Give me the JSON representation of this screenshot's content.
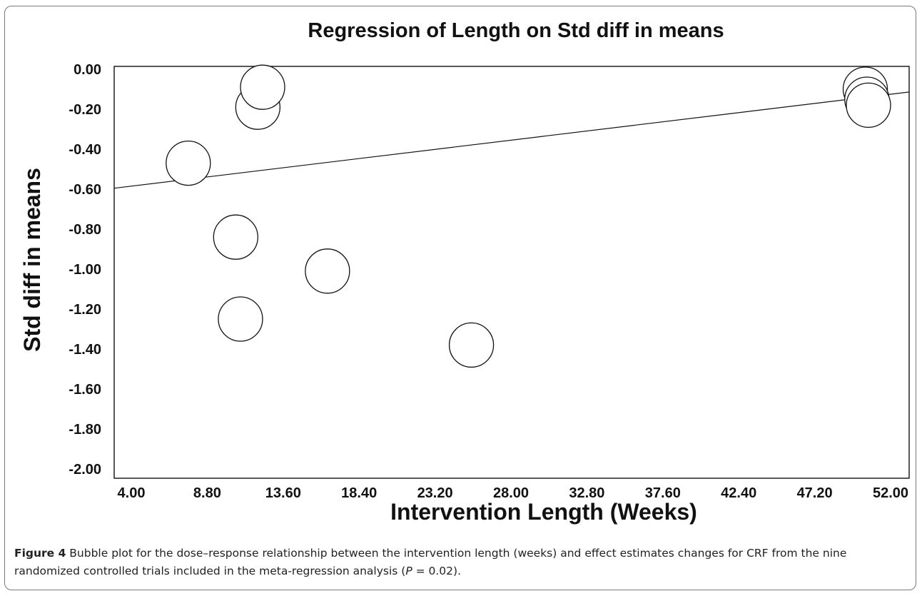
{
  "chart_data": {
    "type": "scatter",
    "title": "Regression of Length on Std diff in means",
    "xlabel": "Intervention Length (Weeks)",
    "ylabel": "Std diff in means",
    "xlim": [
      4.0,
      52.0
    ],
    "ylim": [
      -2.0,
      0.0
    ],
    "x_ticks": [
      "4.00",
      "8.80",
      "13.60",
      "18.40",
      "23.20",
      "28.00",
      "32.80",
      "37.60",
      "42.40",
      "47.20",
      "52.00"
    ],
    "y_ticks": [
      "0.00",
      "-0.20",
      "-0.40",
      "-0.60",
      "-0.80",
      "-1.00",
      "-1.20",
      "-1.40",
      "-1.60",
      "-1.80",
      "-2.00"
    ],
    "grid": false,
    "points": [
      {
        "x": 12.0,
        "y": -0.19
      },
      {
        "x": 12.3,
        "y": -0.09
      },
      {
        "x": 7.6,
        "y": -0.47
      },
      {
        "x": 10.6,
        "y": -0.84
      },
      {
        "x": 10.9,
        "y": -1.25
      },
      {
        "x": 16.4,
        "y": -1.01
      },
      {
        "x": 25.5,
        "y": -1.38
      },
      {
        "x": 50.4,
        "y": -0.1
      },
      {
        "x": 50.5,
        "y": -0.15
      },
      {
        "x": 50.6,
        "y": -0.18
      }
    ],
    "regression_line": {
      "x": [
        4.0,
        52.0
      ],
      "y": [
        -0.585,
        -0.125
      ]
    }
  },
  "caption": {
    "label": "Figure 4",
    "text_before_p": " Bubble plot for the dose–response relationship between the intervention length (weeks) and effect estimates changes for CRF from the nine randomized controlled trials included in the meta-regression analysis (",
    "p_symbol": "P",
    "text_after_p": " = 0.02)."
  }
}
